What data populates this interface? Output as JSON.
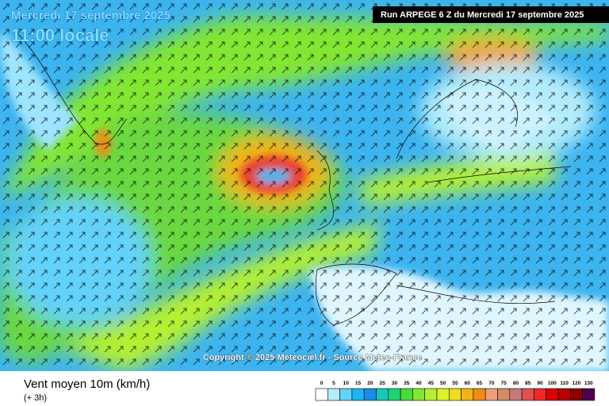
{
  "header": {
    "date": "Mercredi 17 septembre 2025",
    "time": "11:00 locale",
    "run": "Run ARPEGE 6 Z du Mercredi 17 septembre 2025"
  },
  "copyright": "Copyright © 2025 Meteociel.fr - Source Meteo-France",
  "footer": {
    "title": "Vent moyen 10m (km/h)",
    "step": "(+ 3h)"
  },
  "legend": {
    "values": [
      0,
      5,
      10,
      15,
      20,
      25,
      30,
      35,
      40,
      45,
      50,
      55,
      60,
      65,
      70,
      75,
      80,
      85,
      90,
      100,
      110,
      120,
      130
    ],
    "colors": [
      "#ffffff",
      "#b4ecfc",
      "#64d2fa",
      "#1eb4f0",
      "#1a8ce6",
      "#14c8b4",
      "#1ed278",
      "#46dc3c",
      "#82e632",
      "#b4f032",
      "#dcf028",
      "#f0dc1e",
      "#f0b414",
      "#f08c14",
      "#f0a078",
      "#d28c64",
      "#c87878",
      "#dc5050",
      "#f02828",
      "#dc0000",
      "#b40000",
      "#8c0000",
      "#500050"
    ]
  }
}
